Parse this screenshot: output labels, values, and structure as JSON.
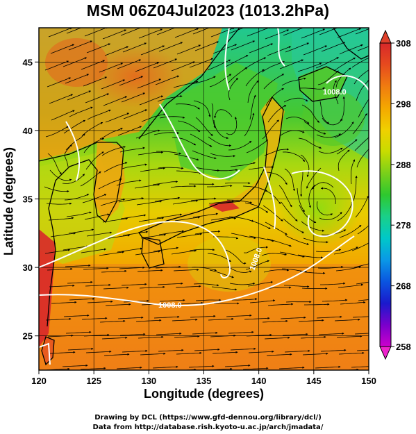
{
  "title": "MSM 06Z04Jul2023 (1013.2hPa)",
  "axes": {
    "xlabel": "Longitude (degrees)",
    "ylabel": "Latitude  (degrees)",
    "lon_range": [
      120,
      150
    ],
    "lat_range": [
      22.5,
      47.5
    ],
    "x_ticks": [
      "120",
      "125",
      "130",
      "135",
      "140",
      "145",
      "150"
    ],
    "y_ticks": [
      "25",
      "30",
      "35",
      "40",
      "45"
    ]
  },
  "colorbar": {
    "min": 258,
    "max": 308,
    "tick_labels": [
      "308",
      "298",
      "288",
      "278",
      "268",
      "258"
    ],
    "colors": [
      "#cc00cc",
      "#7a00cc",
      "#1a1acc",
      "#0a55e0",
      "#0a99e6",
      "#00c8c8",
      "#1ad088",
      "#2ec82e",
      "#7ad01a",
      "#c8dc00",
      "#f0d000",
      "#f4a800",
      "#f07c10",
      "#e64a1e",
      "#d8282a"
    ]
  },
  "contours": {
    "labels": [
      "1008.0",
      "1008.0",
      "1008.0"
    ]
  },
  "footer": {
    "line1": "Drawing by DCL (https://www.gfd-dennou.org/library/dcl/)",
    "line2": "Data from http://database.rish.kyoto-u.ac.jp/arch/jmadata/"
  }
}
